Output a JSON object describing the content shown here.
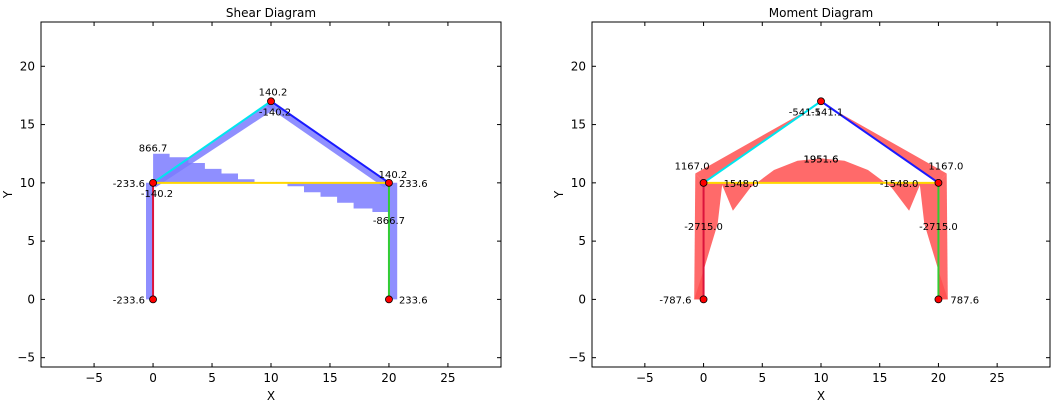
{
  "chart_data": [
    {
      "type": "line",
      "title": "Shear Diagram",
      "xlabel": "X",
      "ylabel": "Y",
      "xlim": [
        -9.5,
        29.5
      ],
      "ylim": [
        -5.8,
        23.8
      ],
      "xticks": [
        -5,
        0,
        5,
        10,
        15,
        20,
        25
      ],
      "yticks": [
        -5,
        0,
        5,
        10,
        15,
        20
      ],
      "grid": false,
      "members": [
        {
          "color": "#dc143c",
          "points": [
            [
              0,
              0
            ],
            [
              0,
              10
            ]
          ]
        },
        {
          "color": "#00e5ee",
          "points": [
            [
              0,
              10
            ],
            [
              10,
              17
            ]
          ]
        },
        {
          "color": "#1a1aff",
          "points": [
            [
              10,
              17
            ],
            [
              20,
              10
            ]
          ]
        },
        {
          "color": "#ffd700",
          "points": [
            [
              0,
              10
            ],
            [
              20,
              10
            ]
          ]
        },
        {
          "color": "#32cd32",
          "points": [
            [
              20,
              10
            ],
            [
              20,
              0
            ]
          ]
        }
      ],
      "nodes": [
        [
          0,
          0
        ],
        [
          0,
          10
        ],
        [
          10,
          17
        ],
        [
          20,
          10
        ],
        [
          20,
          0
        ]
      ],
      "fill_color": "#7b7bff",
      "fills": [
        {
          "polygon": [
            [
              -0.6,
              0
            ],
            [
              0,
              0
            ],
            [
              0,
              10
            ],
            [
              -0.6,
              10
            ]
          ]
        },
        {
          "polygon": [
            [
              0,
              10
            ],
            [
              10,
              17
            ],
            [
              10.4,
              16.4
            ],
            [
              0.2,
              9.6
            ]
          ]
        },
        {
          "polygon": [
            [
              10,
              17
            ],
            [
              20,
              10
            ],
            [
              19.6,
              9.6
            ],
            [
              9.6,
              16.6
            ]
          ]
        },
        {
          "polygon": [
            [
              20,
              10
            ],
            [
              20,
              0
            ],
            [
              20.7,
              0
            ],
            [
              20.7,
              10
            ]
          ]
        },
        {
          "polygon": [
            [
              0,
              10
            ],
            [
              0,
              12.5
            ],
            [
              1.4,
              12.5
            ],
            [
              1.4,
              12.2
            ],
            [
              3,
              12.2
            ],
            [
              3,
              11.7
            ],
            [
              4.4,
              11.7
            ],
            [
              4.4,
              11.2
            ],
            [
              5.8,
              11.2
            ],
            [
              5.8,
              10.8
            ],
            [
              7.2,
              10.8
            ],
            [
              7.2,
              10.3
            ],
            [
              8.6,
              10.3
            ],
            [
              8.6,
              10
            ],
            [
              11.4,
              10
            ],
            [
              11.4,
              9.7
            ],
            [
              12.8,
              9.7
            ],
            [
              12.8,
              9.2
            ],
            [
              14.2,
              9.2
            ],
            [
              14.2,
              8.8
            ],
            [
              15.6,
              8.8
            ],
            [
              15.6,
              8.3
            ],
            [
              17,
              8.3
            ],
            [
              17,
              7.8
            ],
            [
              18.6,
              7.8
            ],
            [
              18.6,
              7.5
            ],
            [
              20,
              7.5
            ],
            [
              20,
              10
            ]
          ]
        }
      ],
      "annotations": [
        {
          "text": "140.2",
          "x": 10,
          "y": 17,
          "anchor": "middle",
          "dx": 2,
          "dy": -6
        },
        {
          "text": "-140.2",
          "x": 10,
          "y": 17,
          "anchor": "middle",
          "dx": 4,
          "dy": 14
        },
        {
          "text": "866.7",
          "x": 0,
          "y": 12.5,
          "anchor": "middle",
          "dx": 0,
          "dy": -2
        },
        {
          "text": "-233.6",
          "x": 0,
          "y": 10,
          "anchor": "end",
          "dx": -8,
          "dy": 4
        },
        {
          "text": "-140.2",
          "x": 0,
          "y": 10,
          "anchor": "middle",
          "dx": 4,
          "dy": 14
        },
        {
          "text": "140.2",
          "x": 20,
          "y": 10,
          "anchor": "middle",
          "dx": 4,
          "dy": -5
        },
        {
          "text": "233.6",
          "x": 20,
          "y": 10,
          "anchor": "start",
          "dx": 10,
          "dy": 4
        },
        {
          "text": "-866.7",
          "x": 20,
          "y": 7.5,
          "anchor": "middle",
          "dx": 0,
          "dy": 12
        },
        {
          "text": "-233.6",
          "x": 0,
          "y": 0,
          "anchor": "end",
          "dx": -8,
          "dy": 4
        },
        {
          "text": "233.6",
          "x": 20,
          "y": 0,
          "anchor": "start",
          "dx": 10,
          "dy": 4
        }
      ]
    },
    {
      "type": "line",
      "title": "Moment Diagram",
      "xlabel": "X",
      "ylabel": "Y",
      "xlim": [
        -9.5,
        29.5
      ],
      "ylim": [
        -5.8,
        23.8
      ],
      "xticks": [
        -5,
        0,
        5,
        10,
        15,
        20,
        25
      ],
      "yticks": [
        -5,
        0,
        5,
        10,
        15,
        20
      ],
      "grid": false,
      "members": [
        {
          "color": "#dc143c",
          "points": [
            [
              0,
              0
            ],
            [
              0,
              10
            ]
          ]
        },
        {
          "color": "#00e5ee",
          "points": [
            [
              0,
              10
            ],
            [
              10,
              17
            ]
          ]
        },
        {
          "color": "#1a1aff",
          "points": [
            [
              10,
              17
            ],
            [
              20,
              10
            ]
          ]
        },
        {
          "color": "#ffd700",
          "points": [
            [
              0,
              10
            ],
            [
              20,
              10
            ]
          ]
        },
        {
          "color": "#32cd32",
          "points": [
            [
              20,
              10
            ],
            [
              20,
              0
            ]
          ]
        }
      ],
      "nodes": [
        [
          0,
          0
        ],
        [
          0,
          10
        ],
        [
          10,
          17
        ],
        [
          20,
          10
        ],
        [
          20,
          0
        ]
      ],
      "fill_color": "#ff5050",
      "fills": [
        {
          "polygon": [
            [
              0,
              0
            ],
            [
              0,
              10
            ],
            [
              -0.7,
              10.8
            ],
            [
              -0.8,
              0
            ]
          ]
        },
        {
          "polygon": [
            [
              0,
              0
            ],
            [
              -0.8,
              0
            ],
            [
              0,
              2.5
            ],
            [
              1.2,
              6.5
            ],
            [
              1.6,
              10
            ],
            [
              0,
              10
            ]
          ]
        },
        {
          "polygon": [
            [
              0,
              10
            ],
            [
              10,
              17
            ],
            [
              9.3,
              16.5
            ],
            [
              -0.7,
              10.8
            ]
          ]
        },
        {
          "polygon": [
            [
              10,
              17
            ],
            [
              20,
              10
            ],
            [
              20.7,
              10.8
            ],
            [
              10.7,
              16.5
            ]
          ]
        },
        {
          "polygon": [
            [
              20,
              0
            ],
            [
              20.8,
              0
            ],
            [
              20,
              2.5
            ],
            [
              18.8,
              6.5
            ],
            [
              18.4,
              10
            ],
            [
              20,
              10
            ]
          ]
        },
        {
          "polygon": [
            [
              20,
              0
            ],
            [
              20,
              10
            ],
            [
              20.7,
              10.8
            ],
            [
              20.8,
              0
            ]
          ]
        },
        {
          "polygon": [
            [
              1.5,
              10
            ],
            [
              2.5,
              7.6
            ],
            [
              4,
              9.6
            ],
            [
              6,
              11.1
            ],
            [
              8,
              11.9
            ],
            [
              10,
              12.1
            ],
            [
              12,
              11.9
            ],
            [
              14,
              11.1
            ],
            [
              16,
              9.6
            ],
            [
              17.5,
              7.6
            ],
            [
              18.5,
              10
            ]
          ]
        }
      ],
      "annotations": [
        {
          "text": "1167.0",
          "x": 0,
          "y": 10.8,
          "anchor": "end",
          "dx": 6,
          "dy": -4
        },
        {
          "text": "1548.0",
          "x": 0,
          "y": 10,
          "anchor": "start",
          "dx": 20,
          "dy": 4
        },
        {
          "text": "-2715.0",
          "x": 0,
          "y": 6.3,
          "anchor": "middle",
          "dx": 0,
          "dy": 4
        },
        {
          "text": "-787.6",
          "x": 0,
          "y": 0,
          "anchor": "end",
          "dx": -12,
          "dy": 4
        },
        {
          "text": "1951.6",
          "x": 10,
          "y": 12.1,
          "anchor": "middle",
          "dx": 0,
          "dy": 4
        },
        {
          "text": "1951.6",
          "x": 10,
          "y": 12.1,
          "anchor": "middle",
          "dx": 0,
          "dy": 4
        },
        {
          "text": "-541.1",
          "x": 10,
          "y": 17,
          "anchor": "end",
          "dx": 0,
          "dy": 14
        },
        {
          "text": "-541.1",
          "x": 10,
          "y": 17,
          "anchor": "start",
          "dx": -10,
          "dy": 14
        },
        {
          "text": "1167.0",
          "x": 20,
          "y": 10.8,
          "anchor": "start",
          "dx": -10,
          "dy": -4
        },
        {
          "text": "-1548.0",
          "x": 20,
          "y": 10,
          "anchor": "end",
          "dx": -20,
          "dy": 4
        },
        {
          "text": "-2715.0",
          "x": 20,
          "y": 6.3,
          "anchor": "middle",
          "dx": 0,
          "dy": 4
        },
        {
          "text": "787.6",
          "x": 20,
          "y": 0,
          "anchor": "start",
          "dx": 12,
          "dy": 4
        }
      ]
    }
  ]
}
